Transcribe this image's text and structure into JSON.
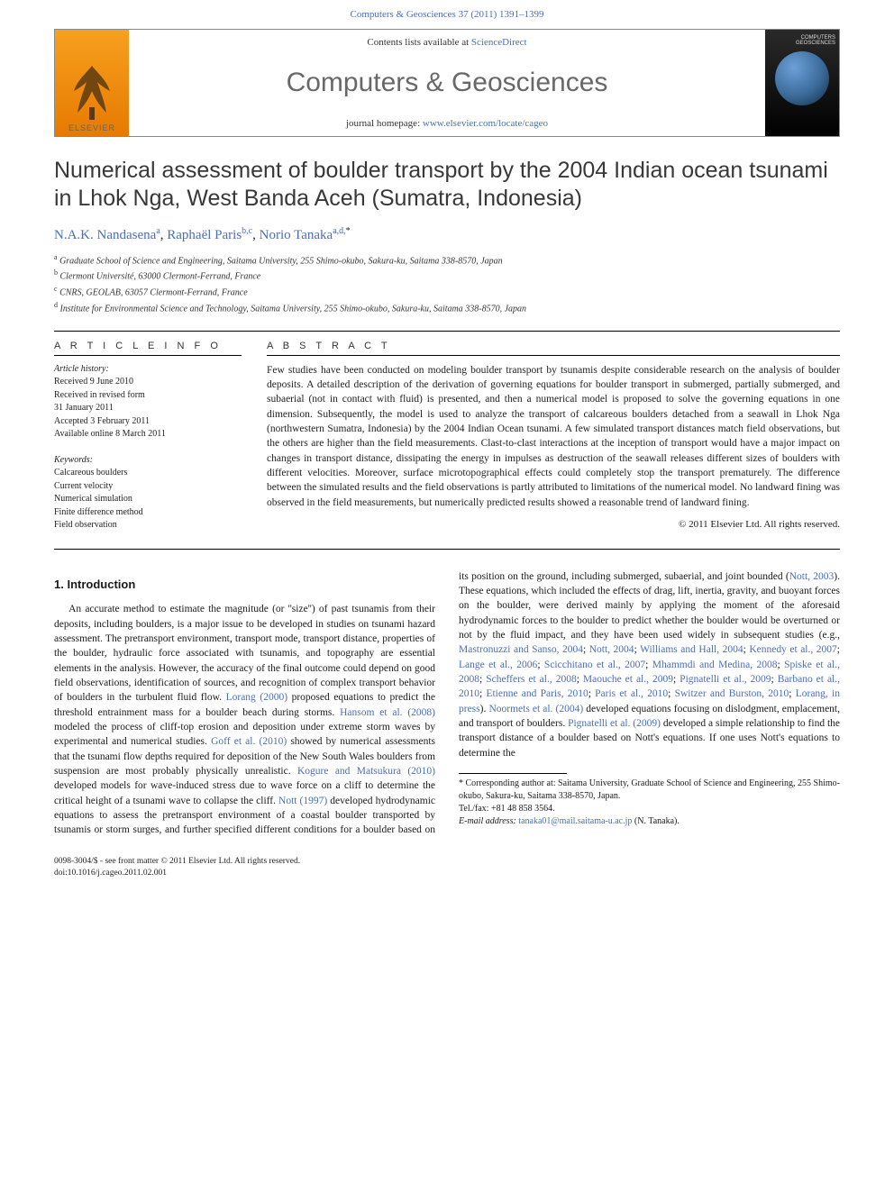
{
  "top_link": {
    "journal": "Computers & Geosciences",
    "citation": "37 (2011) 1391–1399"
  },
  "header": {
    "contents_prefix": "Contents lists available at ",
    "contents_link": "ScienceDirect",
    "journal_name": "Computers & Geosciences",
    "homepage_prefix": "journal homepage: ",
    "homepage_url": "www.elsevier.com/locate/cageo",
    "elsevier_wordmark": "ELSEVIER",
    "cover_title": "COMPUTERS GEOSCIENCES"
  },
  "title": "Numerical assessment of boulder transport by the 2004 Indian ocean tsunami in Lhok Nga, West Banda Aceh (Sumatra, Indonesia)",
  "authors": [
    {
      "name": "N.A.K. Nandasena",
      "affs": "a"
    },
    {
      "name": "Raphaël Paris",
      "affs": "b,c"
    },
    {
      "name": "Norio Tanaka",
      "affs": "a,d,",
      "corr": true
    }
  ],
  "affiliations": [
    {
      "sup": "a",
      "text": "Graduate School of Science and Engineering, Saitama University, 255 Shimo-okubo, Sakura-ku, Saitama 338-8570, Japan"
    },
    {
      "sup": "b",
      "text": "Clermont Université, 63000 Clermont-Ferrand, France"
    },
    {
      "sup": "c",
      "text": "CNRS, GEOLAB, 63057 Clermont-Ferrand, France"
    },
    {
      "sup": "d",
      "text": "Institute for Environmental Science and Technology, Saitama University, 255 Shimo-okubo, Sakura-ku, Saitama 338-8570, Japan"
    }
  ],
  "article_info": {
    "heading": "A R T I C L E   I N F O",
    "history_label": "Article history:",
    "history": [
      "Received 9 June 2010",
      "Received in revised form",
      "31 January 2011",
      "Accepted 3 February 2011",
      "Available online 8 March 2011"
    ],
    "keywords_label": "Keywords:",
    "keywords": [
      "Calcareous boulders",
      "Current velocity",
      "Numerical simulation",
      "Finite difference method",
      "Field observation"
    ]
  },
  "abstract": {
    "heading": "A B S T R A C T",
    "text": "Few studies have been conducted on modeling boulder transport by tsunamis despite considerable research on the analysis of boulder deposits. A detailed description of the derivation of governing equations for boulder transport in submerged, partially submerged, and subaerial (not in contact with fluid) is presented, and then a numerical model is proposed to solve the governing equations in one dimension. Subsequently, the model is used to analyze the transport of calcareous boulders detached from a seawall in Lhok Nga (northwestern Sumatra, Indonesia) by the 2004 Indian Ocean tsunami. A few simulated transport distances match field observations, but the others are higher than the field measurements. Clast-to-clast interactions at the inception of transport would have a major impact on changes in transport distance, dissipating the energy in impulses as destruction of the seawall releases different sizes of boulders with different velocities. Moreover, surface microtopographical effects could completely stop the transport prematurely. The difference between the simulated results and the field observations is partly attributed to limitations of the numerical model. No landward fining was observed in the field measurements, but numerically predicted results showed a reasonable trend of landward fining.",
    "copyright": "© 2011 Elsevier Ltd. All rights reserved."
  },
  "body": {
    "section_heading": "1.  Introduction",
    "para1_pre": "An accurate method to estimate the magnitude (or ''size'') of past tsunamis from their deposits, including boulders, is a major issue to be developed in studies on tsunami hazard assessment. The pretransport environment, transport mode, transport distance, properties of the boulder, hydraulic force associated with tsunamis, and topography are essential elements in the analysis. However, the accuracy of the final outcome could depend on good field observations, identification of sources, and recognition of complex transport behavior of boulders in the turbulent fluid flow. ",
    "ref_lorang": "Lorang (2000)",
    "para1_mid1": " proposed equations to predict the threshold entrainment mass for a boulder beach during storms. ",
    "ref_hansom": "Hansom et al. (2008)",
    "para1_mid2": " modeled the process of cliff-top erosion and deposition under extreme storm waves by experimental and numerical studies. ",
    "ref_goff": "Goff et al. (2010)",
    "para1_mid3": " showed by numerical assessments that the tsunami flow depths required for deposition of the New South Wales boulders from suspension are most probably physically unrealistic. ",
    "ref_kogure": "Kogure and Matsukura (2010)",
    "para1_mid4": " developed models for wave-induced stress due to wave force on a cliff to determine the critical height of a tsunami wave to collapse the cliff. ",
    "ref_nott97": "Nott (1997)",
    "para1_mid5": " developed hydrodynamic equations to assess the pretransport environment of a coastal boulder transported by tsunamis or storm surges, and further specified different conditions for a boulder based on its position on the ground, including submerged, subaerial, and joint bounded (",
    "ref_nott03": "Nott, 2003",
    "para1_mid6": "). These equations, which included the effects of drag, lift, inertia, gravity, and buoyant forces on the boulder, were derived mainly by applying the moment of the aforesaid hydrodynamic forces to the boulder to predict whether the boulder would be overturned or not by the fluid impact, and they have been used widely in subsequent studies (e.g., ",
    "refs_list": [
      "Mastronuzzi and Sanso, 2004",
      "Nott, 2004",
      "Williams and Hall, 2004",
      "Kennedy et al., 2007",
      "Lange et al., 2006",
      "Scicchitano et al., 2007",
      "Mhammdi and Medina, 2008",
      "Spiske et al., 2008",
      "Scheffers et al., 2008",
      "Maouche et al., 2009",
      "Pignatelli et al., 2009",
      "Barbano et al., 2010",
      "Etienne and Paris, 2010",
      "Paris et al., 2010",
      "Switzer and Burston, 2010",
      "Lorang, in press"
    ],
    "para1_mid7": "). ",
    "ref_noormets": "Noormets et al. (2004)",
    "para1_mid8": " developed equations focusing on dislodgment, emplacement, and transport of boulders. ",
    "ref_pignatelli": "Pignatelli et al. (2009)",
    "para1_tail": " developed a simple relationship to find the transport distance of a boulder based on Nott's equations. If one uses Nott's equations to determine the"
  },
  "footnotes": {
    "corr_text": "Corresponding author at: Saitama University, Graduate School of Science and Engineering, 255 Shimo-okubo, Sakura-ku, Saitama 338-8570, Japan.",
    "telfax": "Tel./fax: +81 48 858 3564.",
    "email_label": "E-mail address:",
    "email": "tanaka01@mail.saitama-u.ac.jp",
    "email_name": "(N. Tanaka)."
  },
  "bottom": {
    "line1": "0098-3004/$ - see front matter © 2011 Elsevier Ltd. All rights reserved.",
    "line2": "doi:10.1016/j.cageo.2011.02.001"
  },
  "colors": {
    "link": "#4a6fb3",
    "heading_gray": "#686868",
    "elsevier_orange": "#e67a00"
  }
}
